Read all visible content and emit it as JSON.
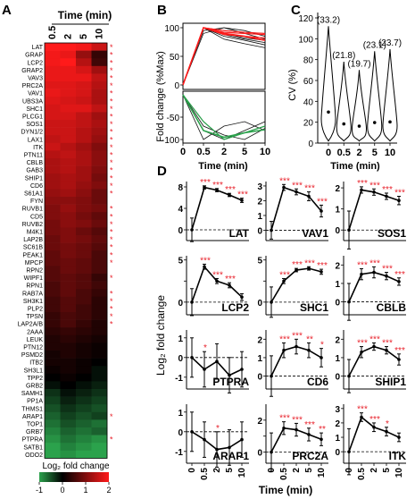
{
  "panel_letters": {
    "a": "A",
    "b": "B",
    "c": "C",
    "d": "D"
  },
  "heatmap": {
    "title": "Time (min)",
    "timepoints": [
      "0.5",
      "2",
      "5",
      "10"
    ],
    "legend_title": "Log₂ fold change",
    "legend_ticks": [
      "-1",
      "0",
      "1",
      "2"
    ],
    "colors": {
      "neg": "#2ba24c",
      "zero": "#000000",
      "pos": "#ff1a1a",
      "star": "#e8202a"
    },
    "rows": [
      {
        "gene": "LAT",
        "star": true,
        "v": [
          2.4,
          2.4,
          2.3,
          1.9
        ]
      },
      {
        "gene": "GRAP",
        "star": true,
        "v": [
          2.3,
          2.2,
          1.4,
          0.5
        ]
      },
      {
        "gene": "LCP2",
        "star": true,
        "v": [
          2.3,
          2.4,
          1.7,
          0.6
        ]
      },
      {
        "gene": "GRAP2",
        "star": true,
        "v": [
          2.2,
          2.2,
          2.0,
          1.5
        ]
      },
      {
        "gene": "VAV3",
        "star": true,
        "v": [
          2.2,
          2.2,
          2.2,
          1.8
        ]
      },
      {
        "gene": "PRC2A",
        "star": true,
        "v": [
          2.1,
          2.1,
          2.0,
          1.7
        ]
      },
      {
        "gene": "VAV1",
        "star": true,
        "v": [
          2.2,
          2.1,
          2.0,
          1.6
        ]
      },
      {
        "gene": "UBS3A",
        "star": true,
        "v": [
          2.1,
          2.0,
          1.9,
          1.6
        ]
      },
      {
        "gene": "SHC1",
        "star": true,
        "v": [
          2.0,
          2.1,
          2.1,
          1.8
        ]
      },
      {
        "gene": "PLCG1",
        "star": true,
        "v": [
          2.0,
          2.0,
          1.8,
          1.5
        ]
      },
      {
        "gene": "SOS1",
        "star": true,
        "v": [
          1.9,
          1.9,
          1.8,
          1.6
        ]
      },
      {
        "gene": "DYN1/2",
        "star": true,
        "v": [
          1.9,
          1.9,
          1.7,
          1.5
        ]
      },
      {
        "gene": "LAX1",
        "star": true,
        "v": [
          1.8,
          1.9,
          1.7,
          1.4
        ]
      },
      {
        "gene": "ITK",
        "star": true,
        "v": [
          1.9,
          1.7,
          1.5,
          1.2
        ]
      },
      {
        "gene": "PTN11",
        "star": true,
        "v": [
          1.7,
          1.8,
          1.6,
          1.3
        ]
      },
      {
        "gene": "CBLB",
        "star": true,
        "v": [
          1.6,
          1.7,
          1.6,
          1.3
        ]
      },
      {
        "gene": "GAB3",
        "star": true,
        "v": [
          1.6,
          1.7,
          1.5,
          1.2
        ]
      },
      {
        "gene": "SHIP1",
        "star": true,
        "v": [
          1.5,
          1.6,
          1.5,
          1.1
        ]
      },
      {
        "gene": "CD6",
        "star": true,
        "v": [
          1.5,
          1.6,
          1.4,
          1.2
        ]
      },
      {
        "gene": "S61A1",
        "star": true,
        "v": [
          1.4,
          1.5,
          1.3,
          1.0
        ]
      },
      {
        "gene": "FYN",
        "star": false,
        "v": [
          1.3,
          1.3,
          1.2,
          1.0
        ]
      },
      {
        "gene": "RUVB1",
        "star": true,
        "v": [
          1.2,
          1.4,
          1.2,
          1.1
        ]
      },
      {
        "gene": "CD5",
        "star": true,
        "v": [
          1.2,
          1.3,
          1.1,
          0.9
        ]
      },
      {
        "gene": "RUVB2",
        "star": true,
        "v": [
          1.1,
          1.3,
          1.2,
          1.0
        ]
      },
      {
        "gene": "M4K1",
        "star": true,
        "v": [
          1.1,
          1.2,
          1.0,
          0.8
        ]
      },
      {
        "gene": "LAP2B",
        "star": true,
        "v": [
          1.0,
          1.2,
          1.1,
          0.9
        ]
      },
      {
        "gene": "SC61B",
        "star": true,
        "v": [
          1.0,
          1.1,
          1.0,
          0.8
        ]
      },
      {
        "gene": "PEAK1",
        "star": true,
        "v": [
          0.9,
          1.1,
          1.0,
          0.7
        ]
      },
      {
        "gene": "MPCP",
        "star": true,
        "v": [
          0.9,
          1.0,
          0.9,
          0.7
        ]
      },
      {
        "gene": "RPN2",
        "star": false,
        "v": [
          0.8,
          1.0,
          0.9,
          0.7
        ]
      },
      {
        "gene": "WIPF1",
        "star": true,
        "v": [
          0.8,
          0.9,
          0.8,
          0.5
        ]
      },
      {
        "gene": "RPN1",
        "star": false,
        "v": [
          0.7,
          0.9,
          0.8,
          0.6
        ]
      },
      {
        "gene": "RAB7A",
        "star": true,
        "v": [
          0.7,
          0.9,
          0.7,
          0.5
        ]
      },
      {
        "gene": "SH3K1",
        "star": true,
        "v": [
          0.6,
          0.8,
          0.7,
          0.4
        ]
      },
      {
        "gene": "PLP2",
        "star": true,
        "v": [
          0.6,
          0.8,
          0.6,
          0.4
        ]
      },
      {
        "gene": "TPSN",
        "star": true,
        "v": [
          0.5,
          0.7,
          0.6,
          0.4
        ]
      },
      {
        "gene": "LAP2A/B",
        "star": true,
        "v": [
          0.5,
          0.7,
          0.5,
          0.3
        ]
      },
      {
        "gene": "2AAA",
        "star": false,
        "v": [
          0.4,
          0.5,
          0.4,
          0.3
        ]
      },
      {
        "gene": "LEUK",
        "star": false,
        "v": [
          0.3,
          0.4,
          0.3,
          0.2
        ]
      },
      {
        "gene": "PTN12",
        "star": false,
        "v": [
          0.3,
          0.3,
          0.2,
          0.1
        ]
      },
      {
        "gene": "PSMD2",
        "star": false,
        "v": [
          0.2,
          0.3,
          0.2,
          0.1
        ]
      },
      {
        "gene": "ITB2",
        "star": false,
        "v": [
          0.2,
          0.2,
          0.1,
          0.0
        ]
      },
      {
        "gene": "SH3L1",
        "star": false,
        "v": [
          0.1,
          0.2,
          0.1,
          -0.1
        ]
      },
      {
        "gene": "TPP2",
        "star": false,
        "v": [
          0.0,
          0.1,
          0.0,
          -0.1
        ]
      },
      {
        "gene": "GRB2",
        "star": false,
        "v": [
          -0.1,
          0.0,
          -0.1,
          -0.2
        ]
      },
      {
        "gene": "SAMH1",
        "star": false,
        "v": [
          -0.3,
          -0.1,
          -0.2,
          -0.3
        ]
      },
      {
        "gene": "PP1A",
        "star": false,
        "v": [
          -0.4,
          -0.2,
          -0.3,
          -0.4
        ]
      },
      {
        "gene": "THMS1",
        "star": false,
        "v": [
          -0.5,
          -0.3,
          -0.4,
          -0.5
        ]
      },
      {
        "gene": "ARAP1",
        "star": true,
        "v": [
          -0.6,
          -0.4,
          -0.5,
          -0.4
        ]
      },
      {
        "gene": "TOP1",
        "star": false,
        "v": [
          -0.7,
          -0.5,
          -0.6,
          -0.7
        ]
      },
      {
        "gene": "GRB7",
        "star": false,
        "v": [
          -0.8,
          -0.6,
          -0.7,
          -0.6
        ]
      },
      {
        "gene": "PTPRA",
        "star": true,
        "v": [
          -0.9,
          -0.7,
          -0.8,
          -0.9
        ]
      },
      {
        "gene": "SATB1",
        "star": false,
        "v": [
          -1.0,
          -0.8,
          -0.9,
          -1.0
        ]
      },
      {
        "gene": "ODO2",
        "star": false,
        "v": [
          -1.0,
          -0.9,
          -1.0,
          -1.0
        ]
      }
    ]
  },
  "chart_data": [
    {
      "type": "line",
      "title": "",
      "ylabel": "Fold change (%Max)",
      "xlabel": "Time (min)",
      "x": [
        "0",
        "0.5",
        "2",
        "5",
        "10"
      ],
      "yticks": [
        "100",
        "50",
        "0",
        "-50",
        "-100"
      ],
      "colors": {
        "up": "#ff1a1a",
        "down": "#2ba24c",
        "trace": "#111111"
      },
      "upper": [
        [
          0,
          100,
          88,
          85,
          82
        ],
        [
          0,
          100,
          92,
          90,
          88
        ],
        [
          0,
          100,
          95,
          92,
          90
        ],
        [
          0,
          100,
          85,
          78,
          70
        ],
        [
          0,
          100,
          80,
          72,
          65
        ],
        [
          0,
          95,
          100,
          90,
          80
        ],
        [
          0,
          90,
          100,
          95,
          85
        ],
        [
          0,
          100,
          88,
          80,
          74
        ],
        [
          0,
          100,
          90,
          82,
          78
        ]
      ],
      "upper_avg": [
        0,
        100,
        90,
        85,
        78
      ],
      "lower": [
        [
          0,
          -60,
          -100,
          -85,
          -70
        ],
        [
          0,
          -80,
          -100,
          -80,
          -60
        ],
        [
          0,
          -100,
          -70,
          -60,
          -80
        ],
        [
          0,
          -70,
          -90,
          -100,
          -75
        ]
      ],
      "lower_avg": [
        0,
        -80,
        -95,
        -85,
        -78
      ]
    },
    {
      "type": "violin",
      "ylabel": "CV (%)",
      "xlabel": "Time (min)",
      "categories": [
        "0",
        "0.5",
        "2",
        "5",
        "10"
      ],
      "yticks": [
        "120",
        "100",
        "80",
        "60",
        "40",
        "20",
        "0"
      ],
      "ylim": [
        0,
        120
      ],
      "annotations": [
        "(33.2)",
        "(21.8)",
        "(19.7)",
        "(23.1)",
        "(23.7)"
      ],
      "medians": [
        33.2,
        21.8,
        19.7,
        23.1,
        23.7
      ]
    },
    {
      "type": "line",
      "ylabel": "Log₂ fold change",
      "xlabel": "Time (min)",
      "x": [
        "0",
        "0.5",
        "2",
        "5",
        "10"
      ],
      "star_color": "#e8202a",
      "panels": [
        {
          "name": "LAT",
          "yticks": [
            "8",
            "4",
            "0"
          ],
          "ylim": [
            -2,
            9
          ],
          "values": [
            0,
            7.9,
            7.4,
            6.5,
            5.5
          ],
          "err": [
            2.2,
            0.3,
            0.3,
            0.3,
            0.4
          ],
          "stars": [
            "",
            "***",
            "***",
            "***",
            "***"
          ]
        },
        {
          "name": "VAV1",
          "yticks": [
            "3",
            "2",
            "1",
            "0"
          ],
          "ylim": [
            -0.7,
            3.3
          ],
          "values": [
            0,
            2.9,
            2.6,
            2.3,
            1.3
          ],
          "err": [
            0.6,
            0.2,
            0.2,
            0.3,
            0.4
          ],
          "stars": [
            "",
            "***",
            "***",
            "***",
            "***"
          ]
        },
        {
          "name": "SOS1",
          "yticks": [
            "2",
            "1",
            "0"
          ],
          "ylim": [
            -0.5,
            2.3
          ],
          "values": [
            0,
            1.9,
            1.8,
            1.6,
            1.4
          ],
          "err": [
            0.9,
            0.15,
            0.15,
            0.15,
            0.2
          ],
          "stars": [
            "",
            "***",
            "***",
            "***",
            "***"
          ]
        },
        {
          "name": "LCP2",
          "yticks": [
            "5",
            "",
            "0"
          ],
          "ylim": [
            -1.5,
            5.5
          ],
          "values": [
            0,
            4.2,
            2.5,
            2.0,
            0.6
          ],
          "err": [
            1.6,
            0.3,
            0.3,
            0.3,
            0.4
          ],
          "stars": [
            "",
            "***",
            "***",
            "***",
            ""
          ]
        },
        {
          "name": "SHC1",
          "yticks": [
            "5",
            "",
            "0"
          ],
          "ylim": [
            -1.5,
            5.5
          ],
          "values": [
            0,
            2.5,
            3.8,
            4.0,
            3.6
          ],
          "err": [
            1.8,
            0.3,
            0.2,
            0.2,
            0.3
          ],
          "stars": [
            "",
            "***",
            "***",
            "***",
            "***"
          ]
        },
        {
          "name": "CBLB",
          "yticks": [
            "2",
            "1",
            "0"
          ],
          "ylim": [
            -0.7,
            2.5
          ],
          "values": [
            0,
            1.5,
            1.6,
            1.4,
            1.1
          ],
          "err": [
            1.0,
            0.3,
            0.3,
            0.2,
            0.2
          ],
          "stars": [
            "",
            "***",
            "***",
            "***",
            "***"
          ]
        },
        {
          "name": "PTPRA",
          "yticks": [
            "1",
            "0",
            "-1"
          ],
          "ylim": [
            -1.6,
            1.4
          ],
          "values": [
            0,
            -0.6,
            -0.2,
            -0.9,
            -0.6
          ],
          "err": [
            1.0,
            0.9,
            0.9,
            0.9,
            0.9
          ],
          "stars": [
            "",
            "*",
            "",
            "",
            ""
          ]
        },
        {
          "name": "CD6",
          "yticks": [
            "2",
            "1",
            "0"
          ],
          "ylim": [
            -0.7,
            2.5
          ],
          "values": [
            0,
            1.4,
            1.6,
            1.4,
            1.0
          ],
          "err": [
            1.1,
            0.4,
            0.4,
            0.4,
            0.5
          ],
          "stars": [
            "",
            "***",
            "***",
            "**",
            "*"
          ]
        },
        {
          "name": "SHIP1",
          "yticks": [
            "2",
            "1",
            "0"
          ],
          "ylim": [
            -0.7,
            2.5
          ],
          "values": [
            0,
            1.3,
            1.6,
            1.4,
            0.9
          ],
          "err": [
            0.9,
            0.3,
            0.2,
            0.2,
            0.3
          ],
          "stars": [
            "",
            "***",
            "***",
            "***",
            "***"
          ]
        },
        {
          "name": "ARAP1",
          "yticks": [
            "1",
            "0",
            "-1"
          ],
          "ylim": [
            -1.6,
            1.4
          ],
          "values": [
            0,
            -0.4,
            -0.9,
            -0.8,
            -0.4
          ],
          "err": [
            1.0,
            0.9,
            0.9,
            0.9,
            0.9
          ],
          "stars": [
            "",
            "",
            "*",
            "",
            ""
          ]
        },
        {
          "name": "PRC2A",
          "yticks": [
            "",
            "2",
            "0"
          ],
          "ylim": [
            -0.7,
            3.0
          ],
          "values": [
            0,
            1.5,
            1.4,
            1.1,
            0.8
          ],
          "err": [
            1.2,
            0.4,
            0.4,
            0.4,
            0.4
          ],
          "stars": [
            "",
            "***",
            "***",
            "***",
            "**"
          ]
        },
        {
          "name": "ITK",
          "yticks": [
            "3",
            "2",
            "1",
            "0"
          ],
          "ylim": [
            -0.8,
            3.3
          ],
          "values": [
            0,
            2.4,
            1.7,
            1.4,
            1.0
          ],
          "err": [
            1.6,
            0.3,
            0.3,
            0.3,
            0.3
          ],
          "stars": [
            "",
            "***",
            "***",
            "*",
            ""
          ]
        }
      ]
    }
  ]
}
